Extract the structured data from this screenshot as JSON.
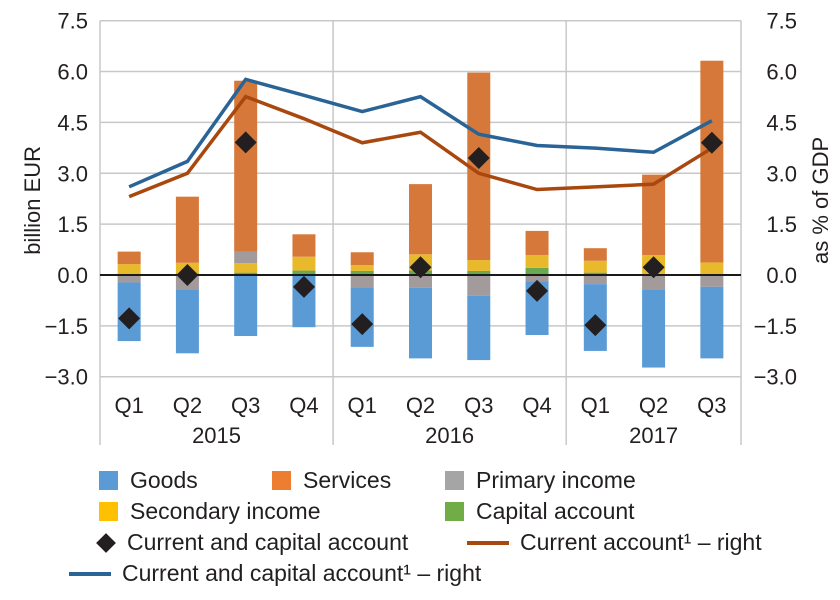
{
  "chart_data": {
    "type": "bar",
    "stacked": true,
    "title": "",
    "ylabel": "billion EUR",
    "ylabel_right": "as % of GDP",
    "ylim": [
      -3.0,
      7.5
    ],
    "ylim_right": [
      -3.0,
      7.5
    ],
    "yticks": [
      "7.5",
      "6.0",
      "4.5",
      "3.0",
      "1.5",
      "0.0",
      "−1.5",
      "−3.0"
    ],
    "ytick_values": [
      7.5,
      6.0,
      4.5,
      3.0,
      1.5,
      0.0,
      -1.5,
      -3.0
    ],
    "grid": true,
    "categories": [
      "Q1",
      "Q2",
      "Q3",
      "Q4",
      "Q1",
      "Q2",
      "Q3",
      "Q4",
      "Q1",
      "Q2",
      "Q3"
    ],
    "years": [
      {
        "label": "2015",
        "count": 4
      },
      {
        "label": "2016",
        "count": 4
      },
      {
        "label": "2017",
        "count": 3
      }
    ],
    "series": [
      {
        "name": "Goods",
        "kind": "bar",
        "color": "#5b9bd5",
        "values": [
          -1.73,
          -1.89,
          -1.8,
          -1.54,
          -1.76,
          -2.08,
          -1.9,
          -1.58,
          -1.97,
          -2.31,
          -2.11
        ]
      },
      {
        "name": "Services",
        "kind": "bar",
        "color": "#d6783a",
        "values": [
          0.37,
          1.95,
          5.04,
          0.66,
          0.38,
          2.07,
          5.53,
          0.71,
          0.37,
          2.37,
          5.95
        ]
      },
      {
        "name": "Primary income",
        "kind": "bar",
        "color": "#a39a9c",
        "values": [
          -0.22,
          -0.42,
          0.34,
          0.0,
          -0.36,
          -0.38,
          -0.61,
          -0.19,
          -0.27,
          -0.42,
          -0.35
        ]
      },
      {
        "name": "Secondary income",
        "kind": "bar",
        "color": "#e8b92a",
        "values": [
          0.32,
          0.31,
          0.28,
          0.41,
          0.17,
          0.48,
          0.32,
          0.38,
          0.35,
          0.57,
          0.37
        ]
      },
      {
        "name": "Capital account",
        "kind": "bar",
        "color": "#6aa84f",
        "values": [
          0.0,
          0.05,
          0.07,
          0.13,
          0.12,
          0.13,
          0.12,
          0.21,
          0.07,
          0.02,
          0.0
        ]
      },
      {
        "name": "Current and capital account",
        "kind": "marker",
        "color": "#231f20",
        "values": [
          -1.28,
          0.0,
          3.91,
          -0.35,
          -1.45,
          0.23,
          3.45,
          -0.47,
          -1.48,
          0.23,
          3.9
        ]
      },
      {
        "name": "Current account¹ – right",
        "kind": "line",
        "axis": "right",
        "color": "#a8480f",
        "values": [
          2.31,
          3.0,
          5.26,
          4.61,
          3.9,
          4.21,
          3.0,
          2.52,
          2.6,
          2.68,
          3.74
        ]
      },
      {
        "name": "Current and capital account¹ – right",
        "kind": "line",
        "axis": "right",
        "color": "#2a6496",
        "values": [
          2.6,
          3.35,
          5.77,
          5.3,
          4.82,
          5.26,
          4.15,
          3.82,
          3.74,
          3.62,
          4.55
        ]
      }
    ],
    "legend_position": "bottom"
  },
  "legend": {
    "goods": "Goods",
    "services": "Services",
    "primary_income": "Primary income",
    "secondary_income": "Secondary income",
    "capital_account": "Capital account",
    "current_capital_marker": "Current and capital account",
    "current_account_line": "Current account¹ – right",
    "current_capital_line": "Current and capital account¹ – right"
  },
  "colors": {
    "goods": "#5b9bd5",
    "services": "#d6783a",
    "primary_income": "#a39a9c",
    "secondary_income": "#e8b92a",
    "capital_account": "#6aa84f",
    "marker": "#231f20",
    "current_account_line": "#a8480f",
    "current_capital_line": "#2a6496"
  }
}
